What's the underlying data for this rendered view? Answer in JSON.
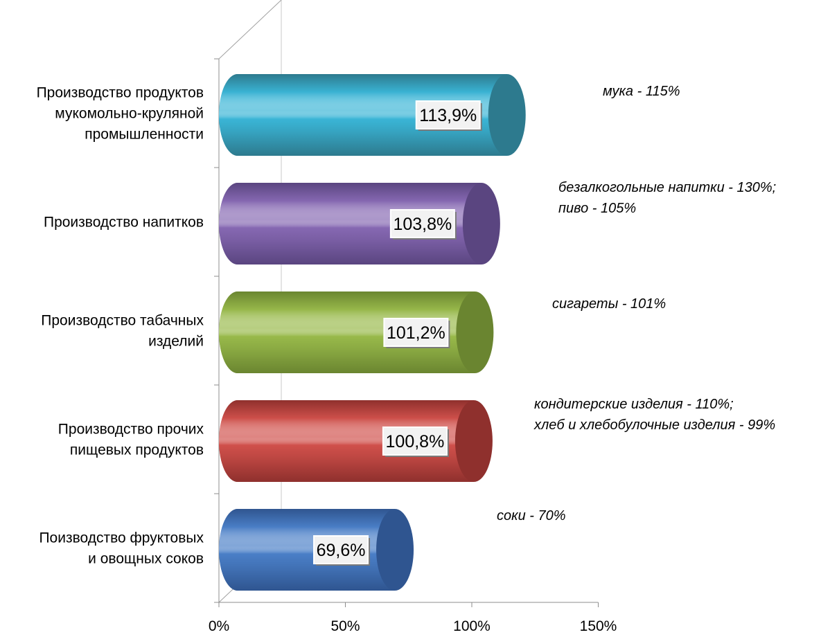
{
  "chart_data": {
    "type": "bar",
    "orientation": "horizontal",
    "style": "3d-cylinder",
    "categories": [
      [
        "Производство продуктов",
        "мукомольно-круляной",
        "промышленности"
      ],
      [
        "Производство напитков"
      ],
      [
        "Производство табачных",
        "изделий"
      ],
      [
        "Производство прочих",
        "пищевых продуктов"
      ],
      [
        "Поизводство фруктовых",
        "и овощных соков"
      ]
    ],
    "values": [
      113.9,
      103.8,
      101.2,
      100.8,
      69.6
    ],
    "value_labels": [
      "113,9%",
      "103,8%",
      "101,2%",
      "100,8%",
      "69,6%"
    ],
    "annotations": [
      [
        "мука - 115%"
      ],
      [
        "безалкогольные  напитки - 130%;",
        "пиво - 105%"
      ],
      [
        "сигареты - 101%"
      ],
      [
        "кондитерские изделия - 110%;",
        "хлеб и хлебобулочные  изделия - 99%"
      ],
      [
        "соки - 70%"
      ]
    ],
    "xlim": [
      0,
      150
    ],
    "xticks": [
      "0%",
      "50%",
      "100%",
      "150%"
    ],
    "xtick_values": [
      0,
      50,
      100,
      150
    ],
    "grid": false,
    "colors": [
      "#3ab5d6",
      "#8668b2",
      "#98b94a",
      "#d0504b",
      "#4a7fc7"
    ],
    "dark_colors": [
      "#2d7a8e",
      "#5a4580",
      "#6a8530",
      "#8f302d",
      "#2f5590"
    ]
  }
}
